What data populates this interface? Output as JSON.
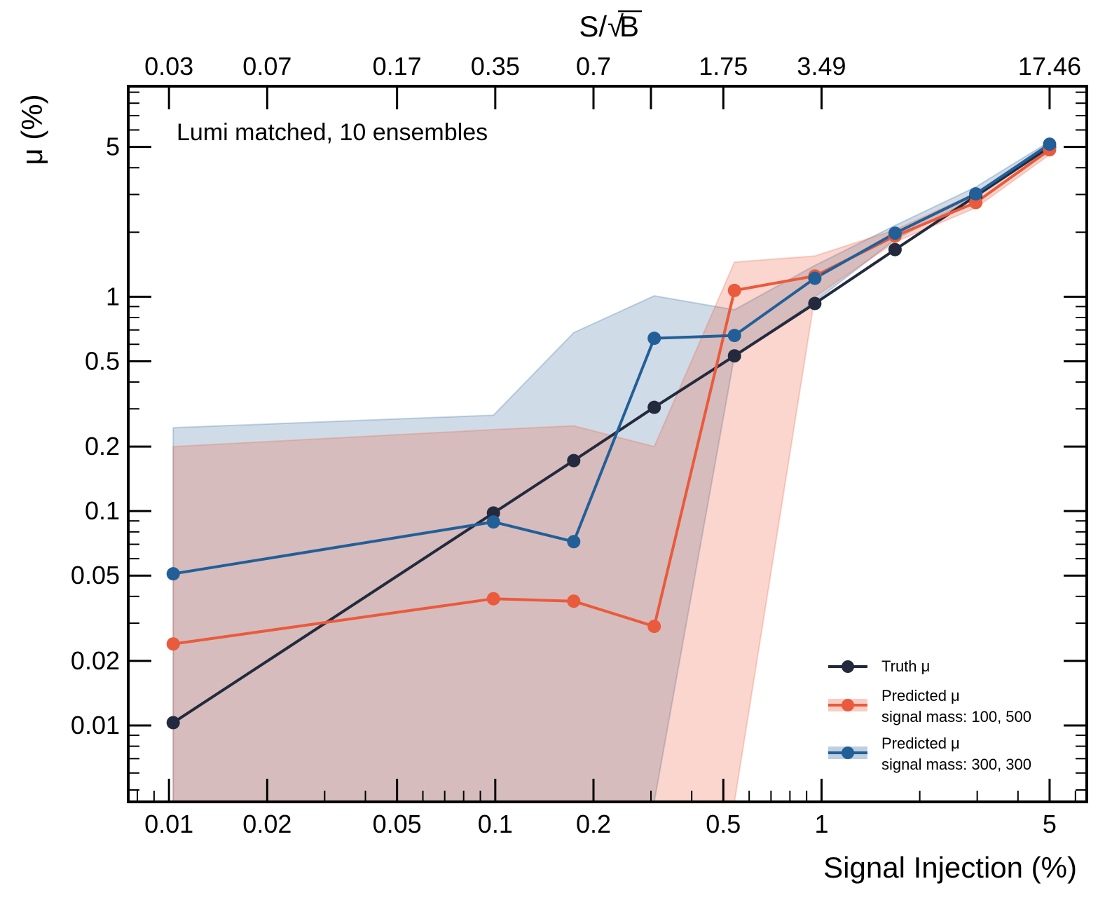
{
  "chart_data": {
    "type": "line",
    "title": "",
    "xlabel": "Signal Injection (%)",
    "ylabel": "μ (%)",
    "top_xlabel_prefix": "S/",
    "top_xlabel_radical": "√",
    "top_xlabel_suffix": "B",
    "xscale": "log",
    "yscale": "log",
    "xlim": [
      0.0075,
      6.5
    ],
    "ylim": [
      0.0044,
      9.6
    ],
    "annotation": "Lumi matched, 10 ensembles",
    "x_ticks": [
      {
        "value": 0.01,
        "label": "0.01"
      },
      {
        "value": 0.02,
        "label": "0.02"
      },
      {
        "value": 0.05,
        "label": "0.05"
      },
      {
        "value": 0.1,
        "label": "0.1"
      },
      {
        "value": 0.2,
        "label": "0.2"
      },
      {
        "value": 0.5,
        "label": "0.5"
      },
      {
        "value": 1,
        "label": "1"
      },
      {
        "value": 5,
        "label": "5"
      }
    ],
    "y_ticks": [
      {
        "value": 0.01,
        "label": "0.01"
      },
      {
        "value": 0.02,
        "label": "0.02"
      },
      {
        "value": 0.05,
        "label": "0.05"
      },
      {
        "value": 0.1,
        "label": "0.1"
      },
      {
        "value": 0.2,
        "label": "0.2"
      },
      {
        "value": 0.5,
        "label": "0.5"
      },
      {
        "value": 1,
        "label": "1"
      },
      {
        "value": 5,
        "label": "5"
      }
    ],
    "top_ticks": [
      {
        "value": 0.01,
        "label": "0.03"
      },
      {
        "value": 0.02,
        "label": "0.07"
      },
      {
        "value": 0.05,
        "label": "0.17"
      },
      {
        "value": 0.1,
        "label": "0.35"
      },
      {
        "value": 0.2,
        "label": "0.7"
      },
      {
        "value": 0.3,
        "label": ""
      },
      {
        "value": 0.5,
        "label": "1.75"
      },
      {
        "value": 1,
        "label": "3.49"
      },
      {
        "value": 5,
        "label": "17.46"
      }
    ],
    "x": [
      0.0103,
      0.0987,
      0.174,
      0.307,
      0.541,
      0.954,
      1.68,
      2.97,
      5.0
    ],
    "series": [
      {
        "name": "Truth μ",
        "color": "#232a3d",
        "values": [
          0.0103,
          0.098,
          0.172,
          0.305,
          0.53,
          0.93,
          1.66,
          2.95,
          5.0
        ]
      },
      {
        "name": "Predicted μ signal mass: 100, 500",
        "color": "#ea5a3c",
        "values": [
          0.024,
          0.039,
          0.038,
          0.029,
          1.07,
          1.25,
          1.92,
          2.75,
          4.85
        ],
        "band_low": [
          0.0044,
          0.0044,
          0.0044,
          0.0044,
          0.0044,
          1.0,
          1.8,
          2.6,
          4.6
        ],
        "band_high": [
          0.2,
          0.24,
          0.25,
          0.2,
          1.45,
          1.55,
          2.05,
          3.05,
          5.1
        ]
      },
      {
        "name": "Predicted μ signal mass: 300, 300",
        "color": "#235f97",
        "values": [
          0.051,
          0.089,
          0.072,
          0.64,
          0.66,
          1.22,
          1.98,
          3.02,
          5.15
        ],
        "band_low": [
          0.0044,
          0.0044,
          0.0044,
          0.0044,
          0.53,
          0.95,
          1.85,
          2.9,
          4.95
        ],
        "band_high": [
          0.245,
          0.28,
          0.68,
          1.01,
          0.87,
          1.4,
          2.15,
          3.25,
          5.3
        ]
      }
    ],
    "legend": {
      "position": "lower-right",
      "entries": [
        {
          "line1": "Truth μ",
          "line2": ""
        },
        {
          "line1": "Predicted μ",
          "line2": "signal mass: 100, 500"
        },
        {
          "line1": "Predicted μ",
          "line2": "signal mass: 300, 300"
        }
      ]
    }
  }
}
